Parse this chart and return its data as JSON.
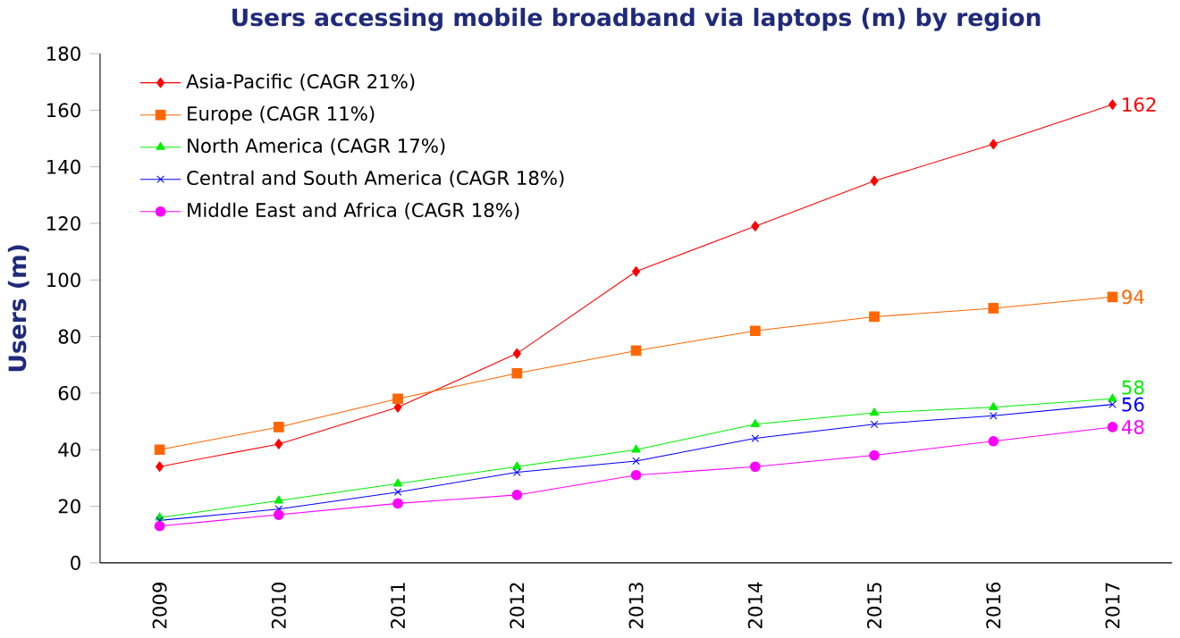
{
  "chart_data": {
    "type": "line",
    "title": "Users accessing mobile broadband via laptops (m) by region",
    "ylabel": "Users (m)",
    "categories": [
      "2009",
      "2010",
      "2011",
      "2012",
      "2013",
      "2014",
      "2015",
      "2016",
      "2017"
    ],
    "series": [
      {
        "name": "Asia-Pacific (CAGR 21%)",
        "color": "#ff0000",
        "marker": "diamond",
        "values": [
          34,
          42,
          55,
          74,
          103,
          119,
          135,
          148,
          162
        ],
        "value_labels": [
          null,
          null,
          null,
          null,
          null,
          null,
          null,
          null,
          "162"
        ]
      },
      {
        "name": "Europe (CAGR 11%)",
        "color": "#ff6600",
        "marker": "square",
        "values": [
          40,
          48,
          58,
          67,
          75,
          82,
          87,
          90,
          94
        ],
        "value_labels": [
          null,
          null,
          null,
          null,
          null,
          null,
          null,
          null,
          "94"
        ]
      },
      {
        "name": "North America (CAGR 17%)",
        "color": "#00ee00",
        "marker": "triangle",
        "values": [
          16,
          22,
          28,
          34,
          40,
          49,
          53,
          55,
          58
        ],
        "value_labels": [
          null,
          null,
          null,
          null,
          null,
          null,
          null,
          null,
          "58"
        ]
      },
      {
        "name": "Central and South America (CAGR 18%)",
        "color": "#0000ff",
        "marker": "cross",
        "values": [
          15,
          19,
          25,
          32,
          36,
          44,
          49,
          52,
          56
        ],
        "value_labels": [
          null,
          null,
          null,
          null,
          null,
          null,
          null,
          null,
          "56"
        ]
      },
      {
        "name": "Middle East and Africa (CAGR 18%)",
        "color": "#ff00ff",
        "marker": "circle",
        "values": [
          13,
          17,
          21,
          24,
          31,
          34,
          38,
          43,
          48
        ],
        "value_labels": [
          null,
          null,
          null,
          null,
          null,
          null,
          null,
          null,
          "48"
        ]
      }
    ],
    "ylim": [
      0,
      180
    ],
    "yticks": [
      0,
      20,
      40,
      60,
      80,
      100,
      120,
      140,
      160,
      180
    ],
    "grid": false,
    "legend": "top left"
  }
}
